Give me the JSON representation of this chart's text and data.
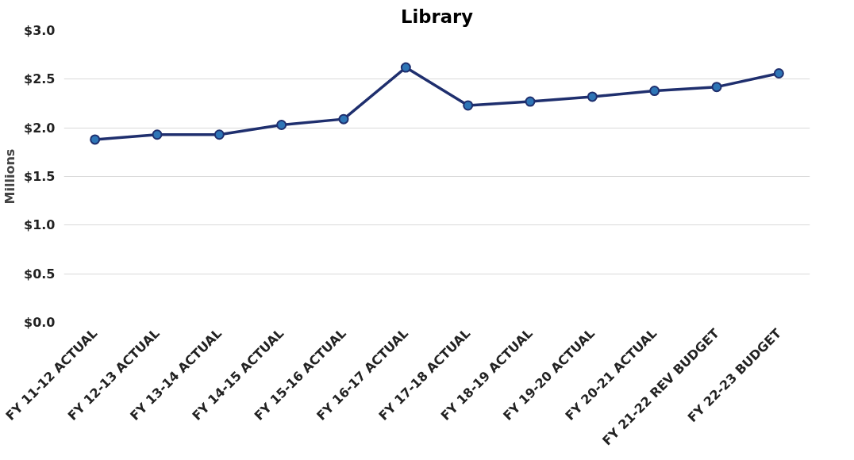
{
  "chart_data": {
    "type": "line",
    "title": "Library",
    "ylabel": "Millions",
    "categories": [
      "FY 11-12 ACTUAL",
      "FY 12-13 ACTUAL",
      "FY 13-14 ACTUAL",
      "FY 14-15 ACTUAL",
      "FY 15-16 ACTUAL",
      "FY 16-17 ACTUAL",
      "FY 17-18 ACTUAL",
      "FY 18-19 ACTUAL",
      "FY 19-20 ACTUAL",
      "FY 20-21 ACTUAL",
      "FY 21-22 REV BUDGET",
      "FY 22-23 BUDGET"
    ],
    "series": [
      {
        "color": "#1f2f6e",
        "values": [
          1.88,
          1.93,
          1.93,
          2.03,
          2.09,
          2.62,
          2.23,
          2.27,
          2.32,
          2.38,
          2.42,
          2.56
        ]
      }
    ],
    "ylim": [
      0,
      3
    ],
    "yticks": [
      {
        "value": 0,
        "label": "$0.0"
      },
      {
        "value": 0.5,
        "label": "$0.5"
      },
      {
        "value": 1,
        "label": "$1.0"
      },
      {
        "value": 1.5,
        "label": "$1.5"
      },
      {
        "value": 2,
        "label": "$2.0"
      },
      {
        "value": 2.5,
        "label": "$2.5"
      },
      {
        "value": 3,
        "label": "$3.0"
      }
    ],
    "grid": "y",
    "marker": "circle",
    "line_style": "solid"
  }
}
